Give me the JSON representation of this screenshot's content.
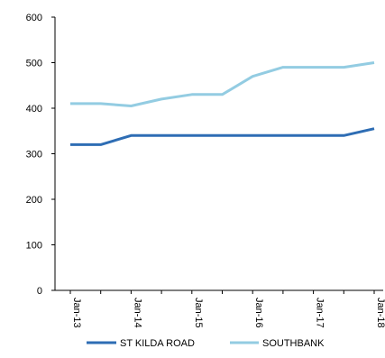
{
  "chart_data": {
    "type": "line",
    "title": "",
    "xlabel": "",
    "ylabel": "",
    "ylim": [
      0,
      600
    ],
    "yticks": [
      0,
      100,
      200,
      300,
      400,
      500,
      600
    ],
    "x": [
      "Jan-13",
      "Jul-13",
      "Jan-14",
      "Jul-14",
      "Jan-15",
      "Jul-15",
      "Jan-16",
      "Jul-16",
      "Jan-17",
      "Jul-17",
      "Jan-18"
    ],
    "x_tick_labels": [
      "Jan-13",
      "Jan-14",
      "Jan-15",
      "Jan-16",
      "Jan-17",
      "Jan-18"
    ],
    "series": [
      {
        "name": "ST KILDA ROAD",
        "color": "#2e6db4",
        "values": [
          320,
          320,
          340,
          340,
          340,
          340,
          340,
          340,
          340,
          340,
          355
        ]
      },
      {
        "name": "SOUTHBANK",
        "color": "#93cce2",
        "values": [
          410,
          410,
          405,
          420,
          430,
          430,
          470,
          490,
          490,
          490,
          500
        ]
      }
    ],
    "grid": false,
    "legend": "bottom"
  }
}
